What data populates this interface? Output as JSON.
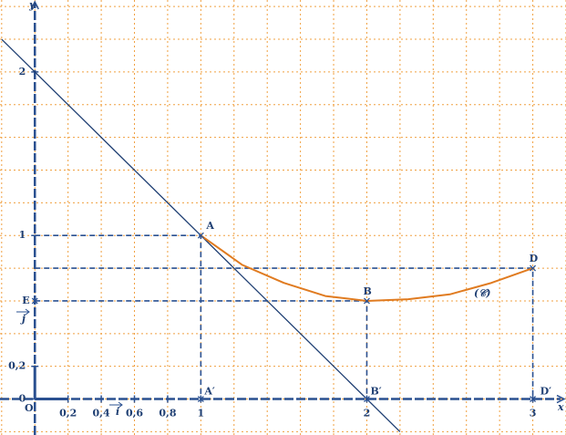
{
  "chart_data": {
    "type": "line",
    "x_label": "x",
    "y_label": "y",
    "origin_label": "O",
    "x": [
      1,
      1.25,
      1.5,
      1.75,
      2,
      2.25,
      2.5,
      2.75,
      3
    ],
    "series": [
      {
        "color": "#e07b20",
        "values": [
          1,
          0.82,
          0.71,
          0.63,
          0.6,
          0.61,
          0.64,
          0.71,
          0.8
        ]
      }
    ],
    "curve_label": "(𝒞)",
    "tangent": {
      "x": [
        -0.2,
        2.2
      ],
      "y": [
        2.2,
        -0.2
      ],
      "color": "#1f3f73"
    },
    "points": [
      {
        "label": "A",
        "x": 1,
        "y": 1
      },
      {
        "label": "B",
        "x": 2,
        "y": 0.6
      },
      {
        "label": "D",
        "x": 3,
        "y": 0.8
      },
      {
        "label": "E",
        "x": 0,
        "y": 0.6
      },
      {
        "label": "A′",
        "x": 1,
        "y": 0
      },
      {
        "label": "B′",
        "x": 2,
        "y": 0
      },
      {
        "label": "D′",
        "x": 3,
        "y": 0
      }
    ],
    "unit_vectors": {
      "i": "i",
      "j": "j"
    },
    "xlim": [
      -0.21,
      3.2
    ],
    "ylim": [
      -0.22,
      2.44
    ],
    "xticks": [
      {
        "value": 0.2,
        "label": "0,2"
      },
      {
        "value": 0.4,
        "label": "0,4"
      },
      {
        "value": 0.6,
        "label": "0,6"
      },
      {
        "value": 0.8,
        "label": "0,8"
      },
      1,
      2,
      3
    ],
    "yticks": [
      0,
      {
        "value": 0.2,
        "label": "0,2"
      },
      1,
      2
    ],
    "grid": {
      "step": 0.2,
      "color": "#f0a040"
    },
    "axis_color": "#2a5090"
  }
}
